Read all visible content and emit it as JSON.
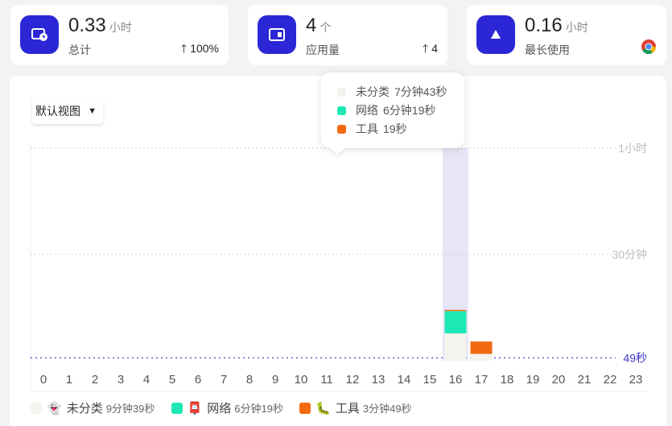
{
  "stats": [
    {
      "value": "0.33",
      "unit": "小时",
      "label": "总计",
      "delta": "100%",
      "icon": "clock-icon"
    },
    {
      "value": "4",
      "unit": "个",
      "label": "应用量",
      "delta": "4",
      "icon": "app-window-icon"
    },
    {
      "value": "0.16",
      "unit": "小时",
      "label": "最长使用",
      "icon": "triangle-icon",
      "app_icon": "chrome-icon"
    }
  ],
  "view_select": {
    "label": "默认视图"
  },
  "tooltip": {
    "items": [
      {
        "name": "未分类",
        "value": "7分钟43秒",
        "color": "#f3f4ee"
      },
      {
        "name": "网络",
        "value": "6分钟19秒",
        "color": "#1de9b6"
      },
      {
        "name": "工具",
        "value": "19秒",
        "color": "#f26a10"
      }
    ]
  },
  "chart_data": {
    "type": "bar",
    "categories": [
      "0",
      "1",
      "2",
      "3",
      "4",
      "5",
      "6",
      "7",
      "8",
      "9",
      "10",
      "11",
      "12",
      "13",
      "14",
      "15",
      "16",
      "17",
      "18",
      "19",
      "20",
      "21",
      "22",
      "23"
    ],
    "series": [
      {
        "name": "未分类",
        "color": "#f3f4ee",
        "values": [
          0,
          0,
          0,
          0,
          0,
          0,
          0,
          0,
          0,
          0,
          0,
          0,
          0,
          0,
          0,
          0,
          463,
          116,
          0,
          0,
          0,
          0,
          0,
          0
        ]
      },
      {
        "name": "网络",
        "color": "#1de9b6",
        "values": [
          0,
          0,
          0,
          0,
          0,
          0,
          0,
          0,
          0,
          0,
          0,
          0,
          0,
          0,
          0,
          0,
          379,
          0,
          0,
          0,
          0,
          0,
          0,
          0
        ]
      },
      {
        "name": "工具",
        "color": "#f26a10",
        "values": [
          0,
          0,
          0,
          0,
          0,
          0,
          0,
          0,
          0,
          0,
          0,
          0,
          0,
          0,
          0,
          0,
          19,
          210,
          0,
          0,
          0,
          0,
          0,
          0
        ]
      }
    ],
    "ylim": [
      0,
      3600
    ],
    "y_ticks": [
      {
        "value": 3600,
        "label": "1小时"
      },
      {
        "value": 1800,
        "label": "30分钟"
      },
      {
        "value": 49,
        "label": "49秒"
      }
    ],
    "highlight_category": "16",
    "highlight_color": "#e6e6f8"
  },
  "legend": [
    {
      "name": "未分类",
      "emoji": "👻",
      "duration": "9分钟39秒",
      "color": "#f3f4ee"
    },
    {
      "name": "网络",
      "emoji": "📮",
      "duration": "6分钟19秒",
      "color": "#1de9b6"
    },
    {
      "name": "工具",
      "emoji": "🐛",
      "duration": "3分钟49秒",
      "color": "#f26a10"
    }
  ]
}
